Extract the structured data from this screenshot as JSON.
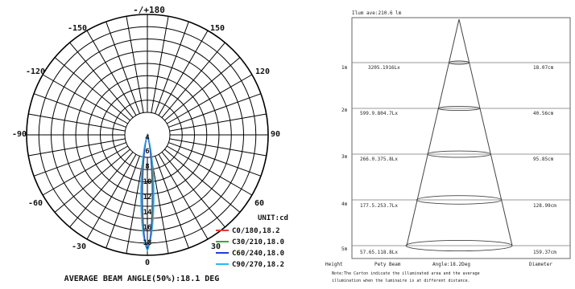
{
  "polar": {
    "angle_labels": {
      "top": "-/+180",
      "upper_left": "-150",
      "upper_right": "150",
      "mid_upper_left": "-120",
      "mid_upper_right": "120",
      "left": "-90",
      "right": "90",
      "lower_left": "-60",
      "lower_right": "60",
      "bottom_left": "-30",
      "bottom_right": "30",
      "bottom": "0"
    },
    "radial_labels": [
      "4",
      "6",
      "8",
      "10",
      "12",
      "14",
      "16",
      "18"
    ],
    "unit": "UNIT:cd",
    "legend": [
      {
        "label": "C0/180,18.2",
        "color": "#e53935"
      },
      {
        "label": "C30/210,18.0",
        "color": "#43a047"
      },
      {
        "label": "C60/240,18.0",
        "color": "#1e3fd6"
      },
      {
        "label": "C90/270,18.2",
        "color": "#29b6f6"
      }
    ],
    "beam_angle": "AVERAGE BEAM ANGLE(50%):18.1 DEG"
  },
  "cone": {
    "header": "Ilum ave:210.6 lm",
    "rows": [
      {
        "height": "1m",
        "left": "3205.1916Lx",
        "right": "18.07cm"
      },
      {
        "height": "2m",
        "left": "599.9.804.7Lx",
        "right": "40.56cm"
      },
      {
        "height": "3m",
        "left": "266.0.375.8Lx",
        "right": "95.85cm"
      },
      {
        "height": "4m",
        "left": "177.5.253.7Lx",
        "right": "128.99cm"
      },
      {
        "height": "5m",
        "left": "57.65.118.8Lx",
        "right": "159.37cm"
      }
    ],
    "footer": {
      "col1": "Height",
      "col2": "Pety Beam",
      "col3": "Angle:18.2Deg",
      "col4": "Diameter"
    },
    "note": [
      "Note:The Carton indicate the illuminated area and the average",
      "illumination when the luminaire is at different distance."
    ]
  }
}
